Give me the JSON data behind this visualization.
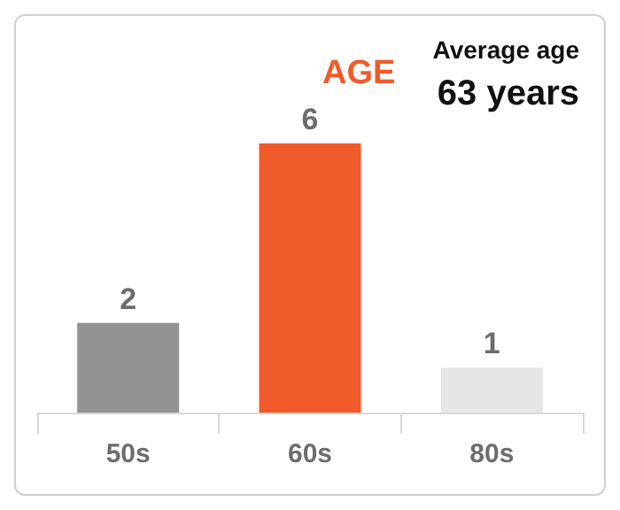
{
  "chart_data": {
    "type": "bar",
    "title": "AGE",
    "annotations": [
      "Average age",
      "63 years"
    ],
    "categories": [
      "50s",
      "60s",
      "80s"
    ],
    "values": [
      2,
      6,
      1
    ],
    "colors": [
      "#939393",
      "#f15a2b",
      "#e6e6e6"
    ],
    "data_labels": true
  }
}
